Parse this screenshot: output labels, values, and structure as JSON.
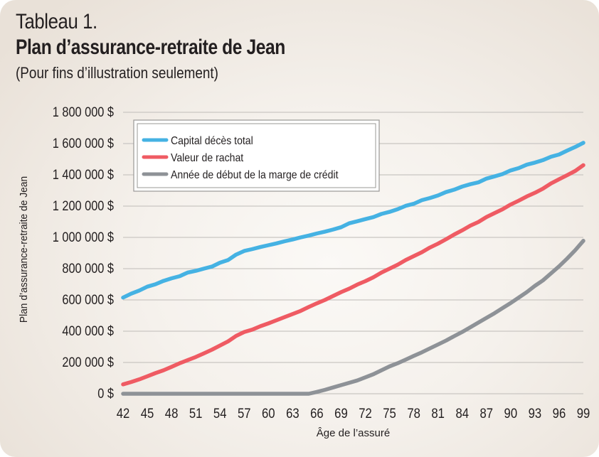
{
  "header": {
    "title_line1": "Tableau 1.",
    "title_line2": "Plan d’assurance-retraite de Jean",
    "subtitle": "(Pour fins d’illustration seulement)"
  },
  "chart_data": {
    "type": "line",
    "xlabel": "Âge de l’assuré",
    "ylabel": "Plan d’assurance-retraite de Jean",
    "xlim": [
      42,
      99
    ],
    "ylim": [
      0,
      1800000
    ],
    "x_ticks": [
      42,
      45,
      48,
      51,
      54,
      57,
      60,
      63,
      66,
      69,
      72,
      75,
      78,
      81,
      84,
      87,
      90,
      93,
      96,
      99
    ],
    "y_ticks": [
      0,
      200000,
      400000,
      600000,
      800000,
      1000000,
      1200000,
      1400000,
      1600000,
      1800000
    ],
    "y_tick_labels": [
      "0 $",
      "200 000 $",
      "400 000 $",
      "600 000 $",
      "800 000 $",
      "1 000 000 $",
      "1 200 000 $",
      "1 400 000 $",
      "1 600 000 $",
      "1 800 000 $"
    ],
    "grid": true,
    "legend_position": "top-left",
    "x": [
      42,
      43,
      44,
      45,
      46,
      47,
      48,
      49,
      50,
      51,
      52,
      53,
      54,
      55,
      56,
      57,
      58,
      59,
      60,
      61,
      62,
      63,
      64,
      65,
      66,
      67,
      68,
      69,
      70,
      71,
      72,
      73,
      74,
      75,
      76,
      77,
      78,
      79,
      80,
      81,
      82,
      83,
      84,
      85,
      86,
      87,
      88,
      89,
      90,
      91,
      92,
      93,
      94,
      95,
      96,
      97,
      98,
      99
    ],
    "series": [
      {
        "name": "Capital décès total",
        "color": "#45b2e3",
        "values": [
          615000,
          640000,
          660000,
          685000,
          700000,
          722000,
          738000,
          752000,
          775000,
          786000,
          800000,
          813000,
          838000,
          855000,
          890000,
          913000,
          925000,
          938000,
          950000,
          962000,
          975000,
          987000,
          1000000,
          1012000,
          1025000,
          1037000,
          1050000,
          1065000,
          1090000,
          1103000,
          1117000,
          1130000,
          1150000,
          1163000,
          1180000,
          1202000,
          1215000,
          1238000,
          1252000,
          1268000,
          1290000,
          1305000,
          1325000,
          1340000,
          1352000,
          1376000,
          1390000,
          1405000,
          1428000,
          1443000,
          1465000,
          1478000,
          1494000,
          1516000,
          1530000,
          1555000,
          1578000,
          1605000
        ]
      },
      {
        "name": "Valeur de rachat",
        "color": "#ef5b63",
        "values": [
          60000,
          75000,
          92000,
          112000,
          132000,
          150000,
          172000,
          195000,
          215000,
          235000,
          258000,
          282000,
          308000,
          335000,
          370000,
          395000,
          410000,
          432000,
          450000,
          470000,
          490000,
          510000,
          530000,
          555000,
          578000,
          600000,
          625000,
          650000,
          672000,
          698000,
          720000,
          745000,
          775000,
          800000,
          825000,
          855000,
          880000,
          905000,
          935000,
          960000,
          988000,
          1018000,
          1045000,
          1075000,
          1098000,
          1130000,
          1155000,
          1180000,
          1210000,
          1235000,
          1262000,
          1285000,
          1312000,
          1345000,
          1372000,
          1398000,
          1425000,
          1462000
        ]
      },
      {
        "name": "Année de début de la marge de crédit",
        "color": "#8e9297",
        "values": [
          0,
          0,
          0,
          0,
          0,
          0,
          0,
          0,
          0,
          0,
          0,
          0,
          0,
          0,
          0,
          0,
          0,
          0,
          0,
          0,
          0,
          0,
          0,
          0,
          12000,
          25000,
          40000,
          55000,
          70000,
          85000,
          105000,
          125000,
          150000,
          175000,
          195000,
          218000,
          242000,
          265000,
          290000,
          315000,
          340000,
          368000,
          395000,
          425000,
          455000,
          485000,
          515000,
          548000,
          580000,
          615000,
          650000,
          690000,
          725000,
          770000,
          815000,
          865000,
          918000,
          978000
        ]
      }
    ]
  }
}
